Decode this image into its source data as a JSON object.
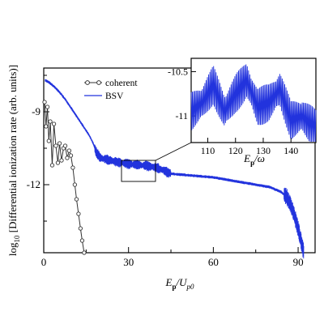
{
  "chart_data": [
    {
      "type": "line",
      "xlabel": {
        "main": "E",
        "sub1": "p",
        "slash": "/U",
        "sub2": "p0"
      },
      "ylabel": {
        "pre": "log",
        "sub": "10",
        "post": " [Differential ionization rate (arb. units)]"
      },
      "xlim": [
        0,
        96
      ],
      "ylim": [
        -14.8,
        -7.2
      ],
      "x_ticks": [
        0,
        30,
        60,
        90
      ],
      "x_tick_labels": [
        "0",
        "30",
        "60",
        "90"
      ],
      "y_ticks": [
        -9,
        -12
      ],
      "y_tick_labels": [
        "-9",
        "-12"
      ],
      "legend": {
        "position": "top-center"
      },
      "series": [
        {
          "name": "coherent",
          "color": "#333333",
          "marker": "open-circle",
          "x": [
            0.3,
            0.8,
            1.3,
            1.8,
            2.3,
            3.0,
            3.6,
            4.3,
            5.0,
            5.6,
            6.3,
            7.0,
            7.6,
            8.3,
            9.0,
            9.6,
            10.3,
            11.0,
            11.6,
            12.3,
            13.0,
            13.6,
            14.3
          ],
          "y": [
            -8.6,
            -9.6,
            -8.8,
            -10.2,
            -9.4,
            -11.2,
            -9.5,
            -10.4,
            -11.1,
            -10.3,
            -11.0,
            -10.5,
            -10.4,
            -10.9,
            -10.6,
            -10.8,
            -11.3,
            -12.0,
            -12.6,
            -13.2,
            -13.8,
            -14.3,
            -14.8
          ]
        },
        {
          "name": "BSV",
          "color": "#2233dd",
          "envelope": {
            "x": [
              0.5,
              2,
              4,
              6,
              8,
              10,
              12,
              14,
              16,
              17.5,
              18.5,
              20,
              25,
              30,
              35,
              40,
              45,
              50,
              55,
              60,
              65,
              70,
              75,
              80,
              84,
              86,
              88,
              90,
              92
            ],
            "y": [
              -7.7,
              -7.8,
              -8.0,
              -8.25,
              -8.55,
              -8.9,
              -9.25,
              -9.6,
              -9.95,
              -10.3,
              -10.65,
              -10.9,
              -11.05,
              -11.15,
              -11.2,
              -11.3,
              -11.55,
              -11.6,
              -11.65,
              -11.7,
              -11.8,
              -11.9,
              -12.0,
              -12.1,
              -12.3,
              -12.5,
              -13.0,
              -13.8,
              -14.8
            ]
          }
        }
      ]
    },
    {
      "type": "line",
      "role": "inset",
      "xlabel": {
        "main": "E",
        "sub1": "p",
        "slash": "/ω"
      },
      "xlim": [
        104,
        149
      ],
      "ylim": [
        -11.3,
        -10.35
      ],
      "x_ticks": [
        110,
        120,
        130,
        140
      ],
      "x_tick_labels": [
        "110",
        "120",
        "130",
        "140"
      ],
      "y_ticks": [
        -10.5,
        -11
      ],
      "y_tick_labels": [
        "-10.5",
        "-11"
      ],
      "series": [
        {
          "name": "BSV",
          "color": "#2233dd",
          "x": [
            104,
            108,
            112,
            116,
            120,
            124,
            128,
            132,
            136,
            140,
            144,
            149
          ],
          "y": [
            -10.95,
            -10.85,
            -10.65,
            -10.95,
            -10.75,
            -10.6,
            -10.9,
            -10.85,
            -10.7,
            -11.05,
            -11.0,
            -11.15
          ]
        }
      ]
    }
  ]
}
